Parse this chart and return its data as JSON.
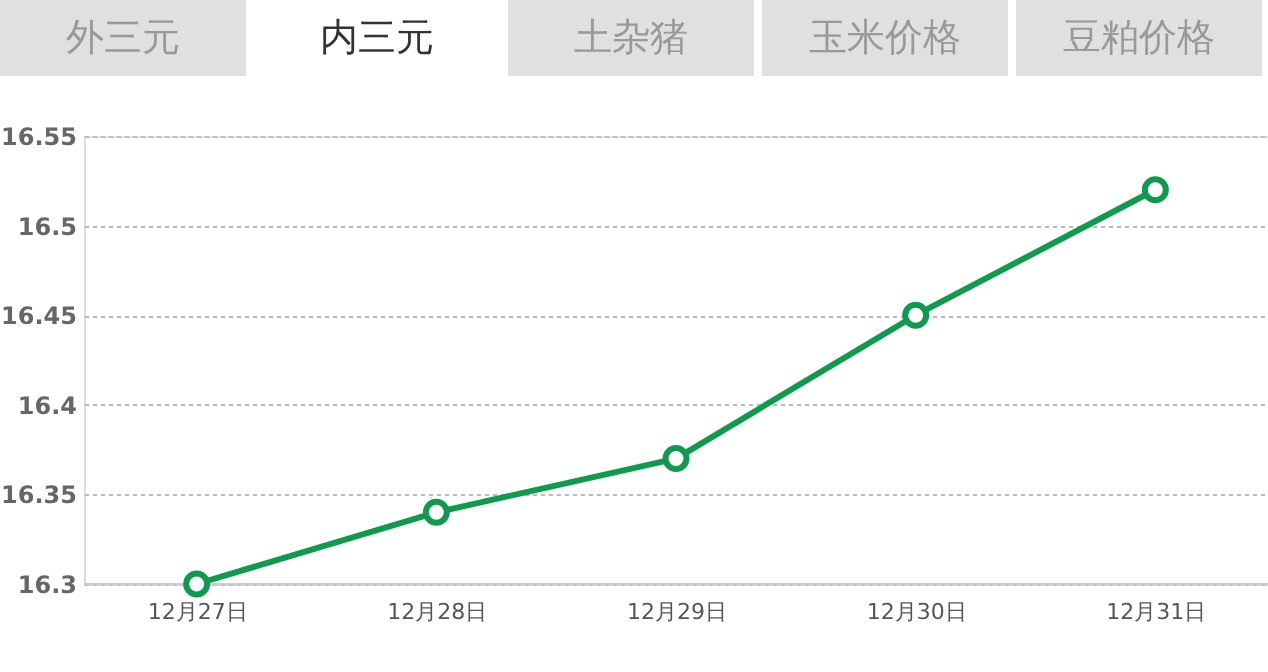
{
  "chart_data": {
    "type": "line",
    "annotations": [
      "外三元",
      "内三元",
      "土杂猪",
      "玉米价格",
      "豆粕价格"
    ],
    "categories": [
      "12月27日",
      "12月28日",
      "12月29日",
      "12月30日",
      "12月31日"
    ],
    "series": [
      {
        "color": "#109a4e",
        "values": [
          16.3,
          16.34,
          16.37,
          16.45,
          16.52
        ]
      }
    ],
    "ylim": [
      16.3,
      16.55
    ],
    "yticks": [
      16.3,
      16.35,
      16.4,
      16.45,
      16.5,
      16.55
    ],
    "grid": "y",
    "marker": "circle",
    "line_style": "solid"
  }
}
